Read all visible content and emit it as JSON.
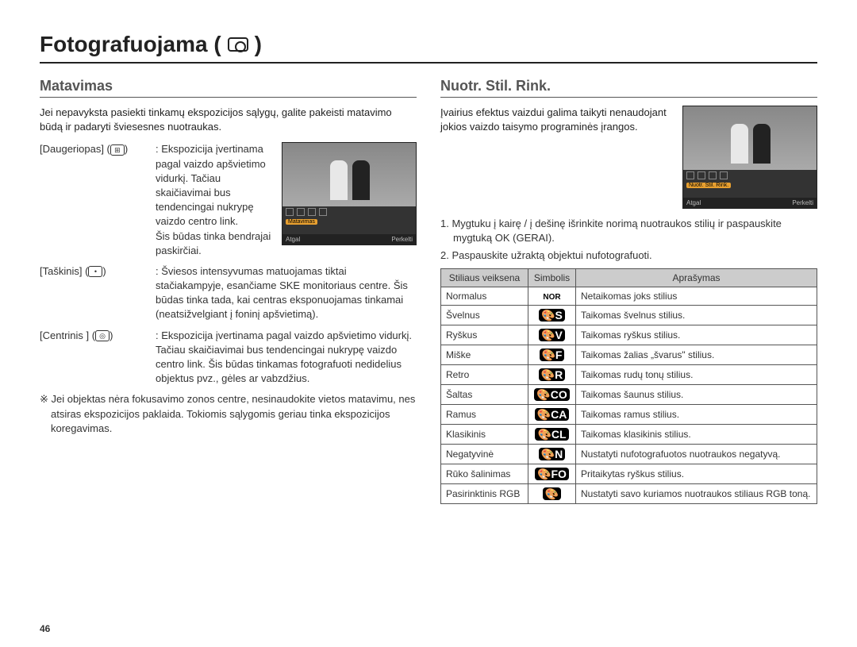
{
  "page": {
    "title": "Fotografuojama (",
    "title_suffix": ")",
    "number": "46"
  },
  "left": {
    "heading": "Matavimas",
    "intro": "Jei nepavyksta pasiekti tinkamų ekspozicijos sąlygų, galite pakeisti matavimo būdą ir padaryti šviesesnes nuotraukas.",
    "items": [
      {
        "label": "[Daugeriopas] (",
        "icon": "⊞",
        "label_suffix": ")",
        "colon": ": ",
        "desc_first": "Ekspozicija įvertinama pagal vaizdo apšvietimo vidurkį. Tačiau skaičiavimai bus tendencingai nukrypę vaizdo centro link.",
        "desc_rest": "Šis būdas tinka bendrajai paskirčiai."
      },
      {
        "label": "[Taškinis] (",
        "icon": "•",
        "label_suffix": ")",
        "colon": ": ",
        "desc_first": "Šviesos intensyvumas matuojamas tiktai stačiakampyje, esančiame SKE monitoriaus centre. Šis būdas tinka tada, kai centras eksponuojamas tinkamai (neatsižvelgiant į foninį apšvietimą).",
        "desc_rest": ""
      },
      {
        "label": "[Centrinis ] (",
        "icon": "◎",
        "label_suffix": ")",
        "colon": ": ",
        "desc_first": "Ekspozicija įvertinama pagal vaizdo apšvietimo vidurkį. Tačiau skaičiavimai bus tendencingai nukrypę vaizdo centro link. Šis būdas tinkamas fotografuoti nedidelius objektus pvz., gėles ar vabzdžius.",
        "desc_rest": ""
      }
    ],
    "note": "※ Jei objektas nėra fokusavimo zonos centre, nesinaudokite vietos matavimu, nes atsiras ekspozicijos paklaida. Tokiomis sąlygomis geriau tinka ekspozicijos koregavimas.",
    "screenshot": {
      "menu_label": "Matavimas",
      "bar_left": "Atgal",
      "bar_right": "Perkelti"
    }
  },
  "right": {
    "heading": "Nuotr. Stil. Rink.",
    "intro": "Įvairius efektus vaizdui galima taikyti nenaudojant jokios vaizdo taisymo programinės įrangos.",
    "steps": [
      "1. Mygtuku į kairę / į dešinę išrinkite norimą nuotraukos stilių ir paspauskite mygtuką OK (GERAI).",
      "2. Paspauskite užraktą objektui nufotografuoti."
    ],
    "screenshot": {
      "menu_label": "Nuotr. Stil. Rink.",
      "bar_left": "Atgal",
      "bar_right": "Perkelti"
    },
    "table": {
      "headers": [
        "Stiliaus veiksena",
        "Simbolis",
        "Aprašymas"
      ],
      "rows": [
        {
          "mode": "Normalus",
          "sym": "NOR",
          "sym_style": "nor",
          "desc": "Netaikomas joks stilius"
        },
        {
          "mode": "Švelnus",
          "sym": "🎨S",
          "desc": "Taikomas švelnus stilius."
        },
        {
          "mode": "Ryškus",
          "sym": "🎨V",
          "desc": "Taikomas ryškus stilius."
        },
        {
          "mode": "Miške",
          "sym": "🎨F",
          "desc": "Taikomas žalias „švarus\" stilius."
        },
        {
          "mode": "Retro",
          "sym": "🎨R",
          "desc": "Taikomas rudų tonų stilius."
        },
        {
          "mode": "Šaltas",
          "sym": "🎨CO",
          "desc": "Taikomas šaunus stilius."
        },
        {
          "mode": "Ramus",
          "sym": "🎨CA",
          "desc": "Taikomas ramus stilius."
        },
        {
          "mode": "Klasikinis",
          "sym": "🎨CL",
          "desc": "Taikomas klasikinis stilius."
        },
        {
          "mode": "Negatyvinė",
          "sym": "🎨N",
          "desc": "Nustatyti nufotografuotos nuotraukos negatyvą."
        },
        {
          "mode": "Rūko šalinimas",
          "sym": "🎨FO",
          "desc": "Pritaikytas ryškus stilius."
        },
        {
          "mode": "Pasirinktinis RGB",
          "sym": "🎨",
          "desc": "Nustatyti savo kuriamos nuotraukos stiliaus RGB toną."
        }
      ]
    }
  }
}
